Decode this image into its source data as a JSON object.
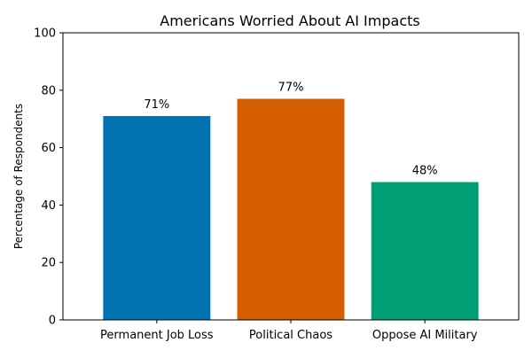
{
  "chart_data": {
    "type": "bar",
    "title": "Americans Worried About AI Impacts",
    "xlabel": "",
    "ylabel": "Percentage of Respondents",
    "ylim": [
      0,
      100
    ],
    "yticks": [
      "0",
      "20",
      "40",
      "60",
      "80",
      "100"
    ],
    "categories": [
      "Permanent Job Loss",
      "Political Chaos",
      "Oppose AI Military"
    ],
    "values": [
      71,
      77,
      48
    ],
    "data_labels": [
      "71%",
      "77%",
      "48%"
    ],
    "colors": [
      "#0072b2",
      "#d55e00",
      "#009e73"
    ],
    "grid": false,
    "legend": "none"
  }
}
